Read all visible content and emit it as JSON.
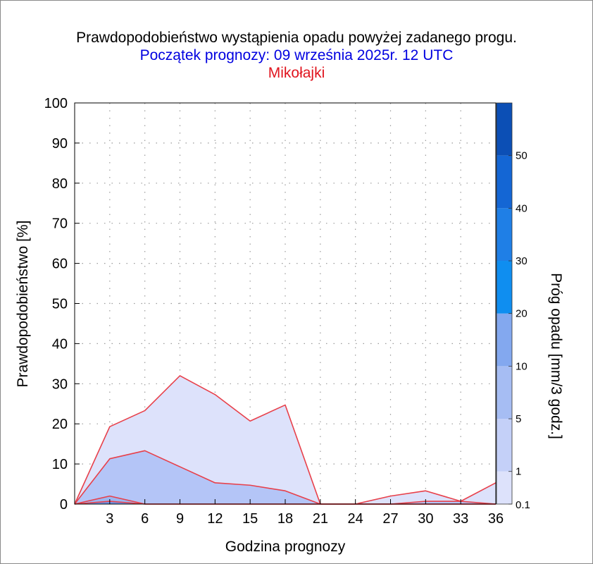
{
  "titles": {
    "main": "Prawdopodobieństwo wystąpienia opadu powyżej zadanego progu.",
    "forecast_start": "Początek prognozy: 09 września 2025r. 12 UTC",
    "location": "Mikołajki"
  },
  "colors": {
    "title": "#000000",
    "forecast_start": "#0000e0",
    "location": "#e0141e",
    "series_line": "#e8404a",
    "grid": "#9a9a9a"
  },
  "chart_data": {
    "type": "area",
    "title": "Prawdopodobieństwo wystąpienia opadu powyżej zadanego progu.",
    "xlabel": "Godzina prognozy",
    "ylabel": "Prawdopodobieństwo [%]",
    "colorbar_label": "Próg opadu [mm/3 godz.]",
    "xlim": [
      0,
      36
    ],
    "ylim": [
      0,
      100
    ],
    "x_ticks": [
      3,
      6,
      9,
      12,
      15,
      18,
      21,
      24,
      27,
      30,
      33,
      36
    ],
    "y_ticks": [
      0,
      10,
      20,
      30,
      40,
      50,
      60,
      70,
      80,
      90,
      100
    ],
    "grid": true,
    "x": [
      0,
      3,
      6,
      9,
      12,
      15,
      18,
      21,
      24,
      27,
      30,
      33,
      36
    ],
    "series": [
      {
        "threshold": 0.1,
        "color": "#dde2fb",
        "values": [
          0,
          19.3,
          23.3,
          32,
          27.3,
          20.7,
          24.7,
          0,
          0,
          2,
          3.3,
          0.7,
          5.3
        ]
      },
      {
        "threshold": 1,
        "color": "#b4c5f7",
        "values": [
          0,
          11.3,
          13.3,
          9.3,
          5.3,
          4.7,
          3.3,
          0,
          0,
          0,
          0.7,
          0.7,
          0
        ]
      },
      {
        "threshold": 5,
        "color": "#9cb6f0",
        "values": [
          0,
          2,
          0,
          0,
          0,
          0,
          0,
          0,
          0,
          0,
          0,
          0,
          0
        ]
      },
      {
        "threshold": 10,
        "color": "#6f96eb",
        "values": [
          0,
          0.7,
          0,
          0,
          0,
          0,
          0,
          0,
          0,
          0,
          0,
          0,
          0
        ]
      }
    ],
    "colorbar": {
      "min": 0.1,
      "max_level": 60,
      "levels": [
        {
          "from": 0.1,
          "to": 1,
          "color": "#dde2fb"
        },
        {
          "from": 1,
          "to": 5,
          "color": "#c4d0f8"
        },
        {
          "from": 5,
          "to": 10,
          "color": "#a6bdf3"
        },
        {
          "from": 10,
          "to": 20,
          "color": "#83a8ef"
        },
        {
          "from": 20,
          "to": 30,
          "color": "#0f8ef0"
        },
        {
          "from": 30,
          "to": 40,
          "color": "#1f7fe6"
        },
        {
          "from": 40,
          "to": 50,
          "color": "#1466d4"
        },
        {
          "from": 50,
          "to": 60,
          "color": "#0c4fb5"
        }
      ],
      "tick_labels": [
        "0.1",
        "1",
        "5",
        "10",
        "20",
        "30",
        "40",
        "50"
      ]
    }
  }
}
